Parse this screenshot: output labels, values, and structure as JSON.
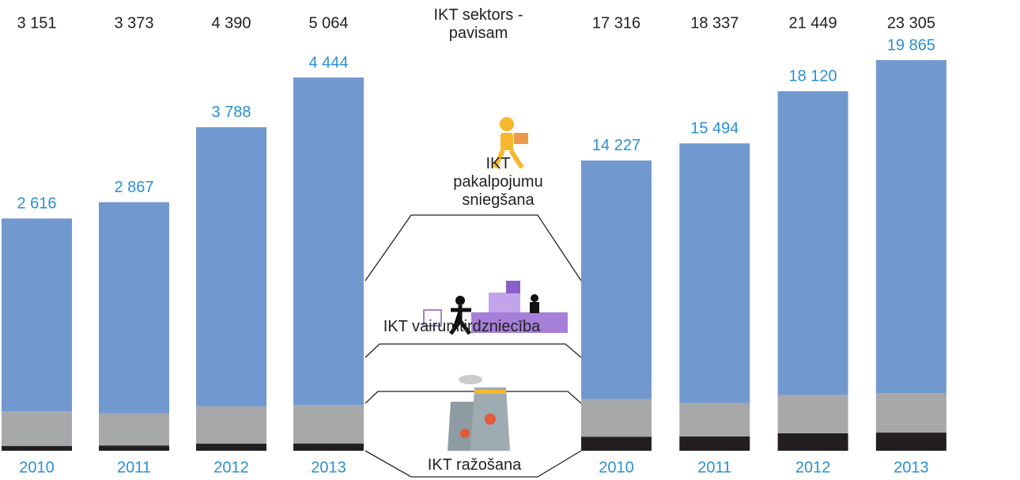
{
  "chart_data": [
    {
      "type": "bar",
      "stacked": true,
      "totals_name": "IKT sektors - pavisam",
      "categories": [
        "2010",
        "2011",
        "2012",
        "2013"
      ],
      "totals": [
        3151,
        3373,
        4390,
        5064
      ],
      "total_labels": [
        "3 151",
        "3 373",
        "4 390",
        "5 064"
      ],
      "series": [
        {
          "name": "IKT ražošana",
          "color": "#231f20",
          "values": [
            64,
            72,
            96,
            99
          ],
          "value_labels": [
            "64",
            "72",
            "96",
            "99"
          ]
        },
        {
          "name": "IKT vairumtirdzniecība",
          "color": "#a7a8aa",
          "values": [
            471,
            434,
            506,
            521
          ],
          "value_labels": [
            "471",
            "434",
            "506",
            "521"
          ]
        },
        {
          "name": "IKT pakalpojumu sniegšana",
          "color": "#7299cf",
          "values": [
            2616,
            2867,
            3788,
            4444
          ],
          "value_labels": [
            "2 616",
            "2 867",
            "3 788",
            "4 444"
          ]
        }
      ]
    },
    {
      "type": "bar",
      "stacked": true,
      "categories": [
        "2010",
        "2011",
        "2012",
        "2013"
      ],
      "totals": [
        17316,
        18337,
        21449,
        23305
      ],
      "total_labels": [
        "17 316",
        "18 337",
        "21 449",
        "23 305"
      ],
      "series": [
        {
          "color": "#231f20",
          "values": [
            838,
            849,
            1045,
            1083
          ],
          "value_labels": [
            "838",
            "849",
            "1 045",
            "1 083"
          ]
        },
        {
          "color": "#a7a8aa",
          "values": [
            2251,
            1994,
            2284,
            2357
          ],
          "value_labels": [
            "2 251",
            "1 994",
            "2 284",
            "2 357"
          ]
        },
        {
          "color": "#7299cf",
          "values": [
            14227,
            15494,
            18120,
            19865
          ],
          "value_labels": [
            "14 227",
            "15 494",
            "18 120",
            "19 865"
          ]
        }
      ]
    }
  ]
}
